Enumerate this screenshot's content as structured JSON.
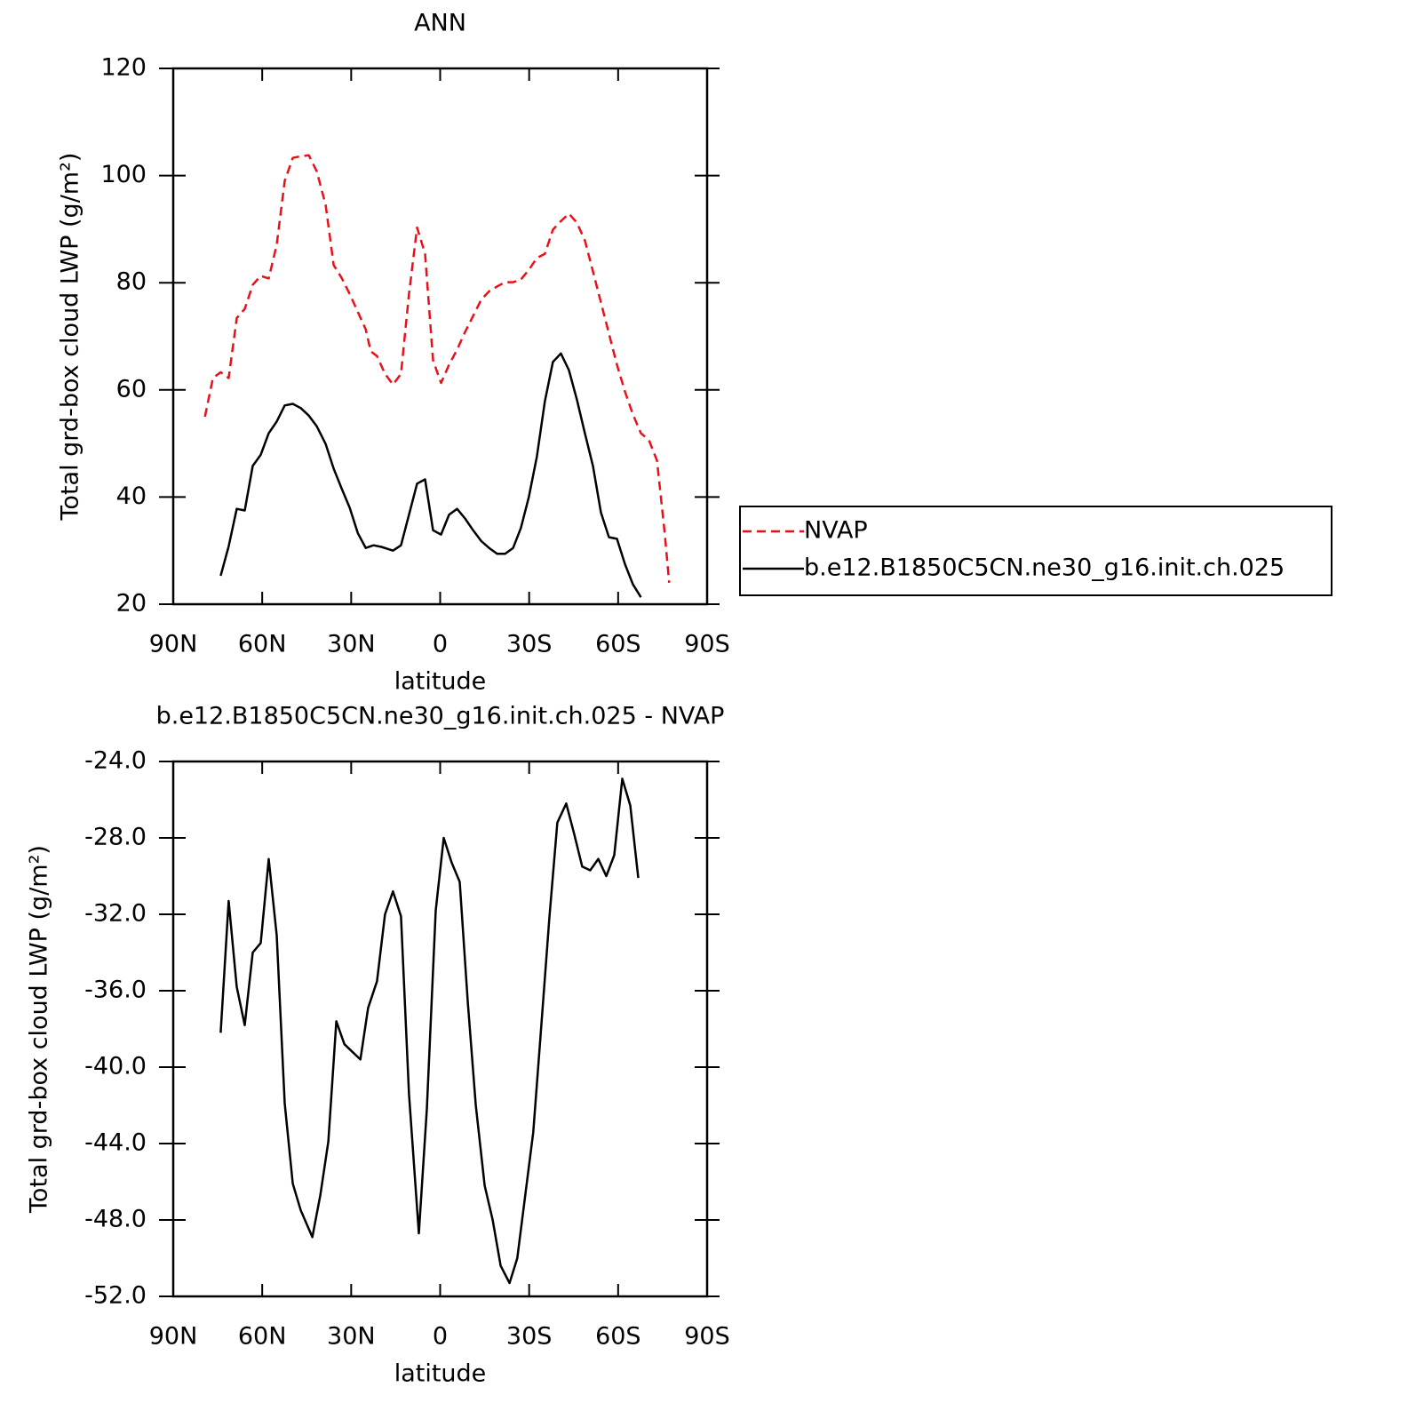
{
  "chart_data": [
    {
      "type": "line",
      "title": "ANN",
      "xlabel": "latitude",
      "ylabel": "Total grd-box cloud LWP (g/m²)",
      "xlim": [
        90,
        -90
      ],
      "xticks": [
        {
          "value": 90,
          "label": "90N"
        },
        {
          "value": 60,
          "label": "60N"
        },
        {
          "value": 30,
          "label": "30N"
        },
        0,
        {
          "value": -30,
          "label": "30S"
        },
        {
          "value": -60,
          "label": "60S"
        },
        {
          "value": -90,
          "label": "90S"
        }
      ],
      "ylim": [
        20,
        120
      ],
      "yticks": [
        20,
        40,
        60,
        80,
        100,
        120
      ],
      "legend": "outside right",
      "series": [
        {
          "name": "NVAP",
          "color": "#e8111a",
          "dashed": true,
          "x": [
            79.3,
            76.6,
            74.0,
            71.3,
            68.6,
            65.9,
            63.2,
            60.5,
            57.8,
            55.1,
            52.4,
            49.7,
            47.0,
            44.3,
            41.6,
            38.6,
            35.9,
            33.2,
            30.5,
            27.8,
            25.1,
            23.4,
            21.3,
            18.6,
            15.9,
            13.2,
            10.5,
            7.8,
            5.1,
            2.4,
            -0.3,
            -3.0,
            -5.7,
            -8.4,
            -11.1,
            -13.8,
            -16.5,
            -19.2,
            -21.9,
            -24.6,
            -27.2,
            -29.9,
            -32.6,
            -35.3,
            -38.0,
            -40.7,
            -43.4,
            -46.1,
            -48.8,
            -51.5,
            -54.2,
            -56.9,
            -59.6,
            -62.3,
            -65.0,
            -67.7,
            -70.4,
            -73.1,
            -75.7,
            -77.2
          ],
          "values": [
            55.0,
            62.2,
            63.3,
            62.2,
            73.4,
            75.1,
            79.6,
            81.3,
            80.8,
            87.1,
            99.0,
            103.3,
            103.6,
            103.8,
            100.8,
            94.5,
            83.3,
            80.9,
            77.9,
            74.6,
            71.3,
            67.2,
            66.3,
            63.0,
            61.0,
            63.0,
            77.9,
            90.3,
            85.4,
            65.5,
            61.3,
            64.7,
            67.5,
            70.8,
            73.8,
            76.8,
            78.4,
            79.3,
            80.1,
            80.1,
            80.6,
            82.4,
            84.6,
            85.4,
            89.9,
            91.5,
            92.9,
            91.2,
            87.9,
            82.1,
            76.3,
            70.5,
            64.7,
            59.7,
            55.4,
            51.9,
            50.6,
            46.8,
            33.2,
            24.0
          ]
        },
        {
          "name": "b.e12.B1850C5CN.ne30_g16.init.ch.025",
          "color": "#000000",
          "dashed": false,
          "x": [
            74.0,
            71.3,
            68.6,
            65.9,
            63.2,
            60.5,
            57.8,
            55.1,
            52.4,
            49.7,
            47.0,
            44.3,
            41.6,
            38.6,
            35.9,
            33.2,
            30.5,
            27.8,
            25.1,
            22.5,
            19.8,
            15.9,
            13.2,
            10.5,
            7.8,
            5.1,
            2.4,
            -0.3,
            -3.0,
            -5.7,
            -8.4,
            -11.1,
            -13.8,
            -16.5,
            -19.2,
            -21.9,
            -24.6,
            -27.2,
            -29.9,
            -32.6,
            -35.3,
            -38.0,
            -40.7,
            -43.4,
            -46.1,
            -48.8,
            -51.5,
            -54.2,
            -56.9,
            -59.6,
            -62.3,
            -65.0,
            -67.7
          ],
          "values": [
            25.3,
            30.8,
            37.8,
            37.5,
            45.8,
            47.9,
            51.9,
            54.1,
            57.1,
            57.4,
            56.6,
            55.2,
            53.2,
            49.9,
            45.3,
            41.6,
            38.0,
            33.3,
            30.5,
            31.0,
            30.7,
            30.0,
            31.0,
            36.7,
            42.5,
            43.3,
            33.8,
            33.0,
            36.7,
            37.8,
            36.0,
            33.8,
            31.8,
            30.5,
            29.4,
            29.4,
            30.5,
            34.2,
            40.0,
            47.5,
            57.9,
            65.2,
            66.8,
            63.7,
            58.2,
            51.9,
            45.8,
            37.1,
            32.5,
            32.2,
            27.5,
            23.7,
            21.3
          ]
        }
      ]
    },
    {
      "type": "line",
      "title": "b.e12.B1850C5CN.ne30_g16.init.ch.025 - NVAP",
      "xlabel": "latitude",
      "ylabel": "Total grd-box cloud LWP (g/m²)",
      "xlim": [
        90,
        -90
      ],
      "xticks": [
        {
          "value": 90,
          "label": "90N"
        },
        {
          "value": 60,
          "label": "60N"
        },
        {
          "value": 30,
          "label": "30N"
        },
        0,
        {
          "value": -30,
          "label": "30S"
        },
        {
          "value": -60,
          "label": "60S"
        },
        {
          "value": -90,
          "label": "90S"
        }
      ],
      "ylim": [
        -52,
        -24
      ],
      "yticks": [
        {
          "value": -52,
          "label": "-52.0"
        },
        {
          "value": -48,
          "label": "-48.0"
        },
        {
          "value": -44,
          "label": "-44.0"
        },
        {
          "value": -40,
          "label": "-40.0"
        },
        {
          "value": -36,
          "label": "-36.0"
        },
        {
          "value": -32,
          "label": "-32.0"
        },
        {
          "value": -28,
          "label": "-28.0"
        },
        {
          "value": -24,
          "label": "-24.0"
        }
      ],
      "series": [
        {
          "color": "#000000",
          "dashed": false,
          "x": [
            74.0,
            71.3,
            68.6,
            65.9,
            63.2,
            60.5,
            57.8,
            55.1,
            52.4,
            49.7,
            47.0,
            43.1,
            40.4,
            37.7,
            35.0,
            32.3,
            29.6,
            26.9,
            24.3,
            21.3,
            18.6,
            15.9,
            13.2,
            10.5,
            7.2,
            4.5,
            1.5,
            -1.2,
            -3.9,
            -6.6,
            -9.3,
            -12.0,
            -15.0,
            -17.7,
            -20.4,
            -23.4,
            -26.0,
            -28.7,
            -31.4,
            -34.1,
            -36.8,
            -39.5,
            -42.5,
            -45.2,
            -47.9,
            -50.6,
            -53.3,
            -56.0,
            -58.7,
            -61.4,
            -64.1,
            -66.8
          ],
          "values": [
            -38.2,
            -31.3,
            -35.8,
            -37.8,
            -34.0,
            -33.5,
            -29.1,
            -33.1,
            -41.9,
            -46.1,
            -47.5,
            -48.9,
            -46.7,
            -43.9,
            -37.6,
            -38.8,
            -39.2,
            -39.6,
            -36.9,
            -35.5,
            -32.0,
            -30.8,
            -32.1,
            -41.4,
            -48.7,
            -42.2,
            -31.8,
            -28.0,
            -29.3,
            -30.3,
            -36.6,
            -42.0,
            -46.2,
            -48.0,
            -50.4,
            -51.3,
            -50.0,
            -46.7,
            -43.4,
            -37.8,
            -32.2,
            -27.2,
            -26.2,
            -27.8,
            -29.5,
            -29.7,
            -29.1,
            -30.0,
            -28.9,
            -24.9,
            -26.3,
            -30.1
          ]
        }
      ]
    }
  ]
}
